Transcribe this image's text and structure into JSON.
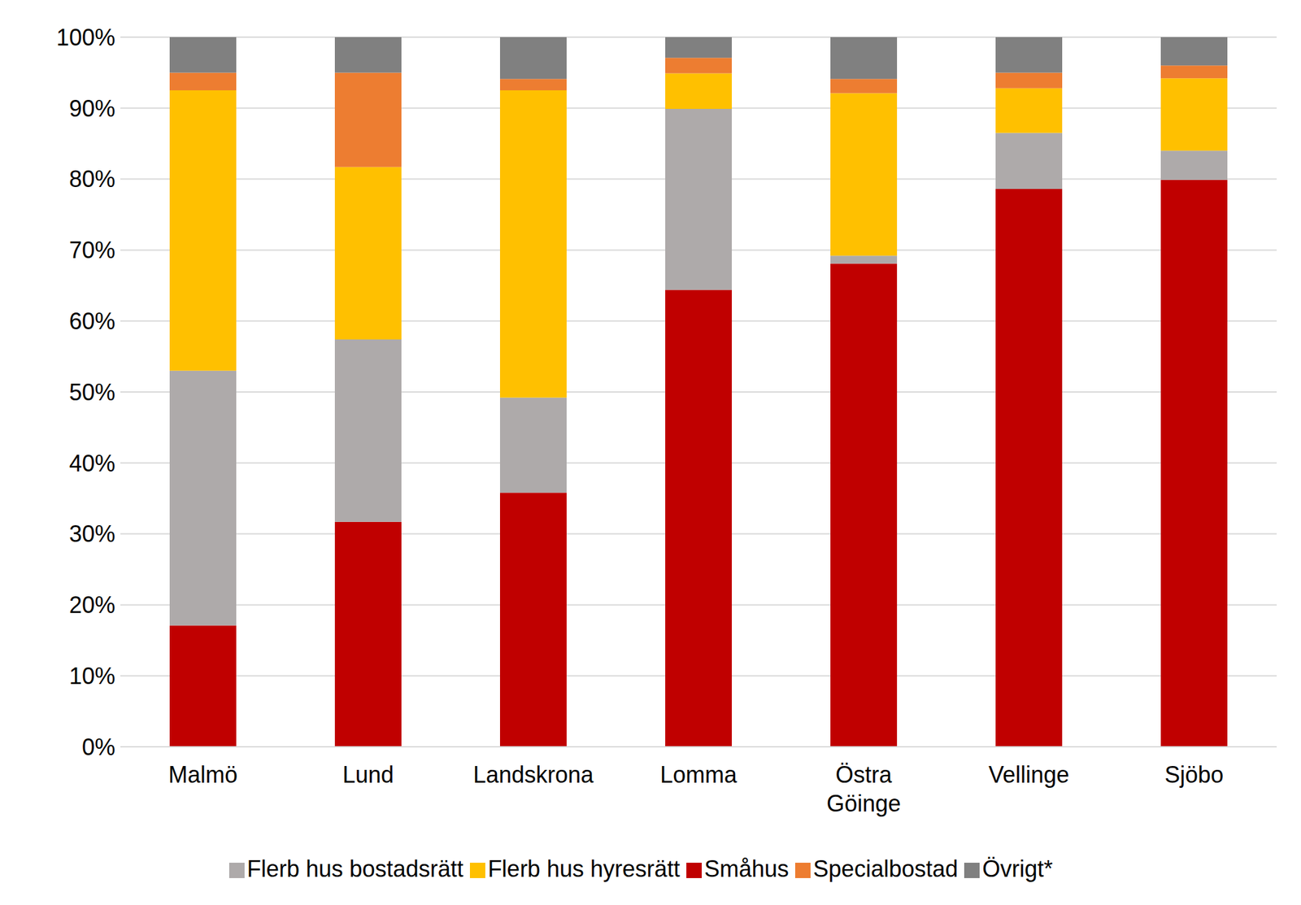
{
  "chart_data": {
    "type": "bar",
    "stacked": true,
    "grid": true,
    "legend": "bottom",
    "categories": [
      "Malmö",
      "Lund",
      "Landskrona",
      "Lomma",
      "Östra Göinge",
      "Vellinge",
      "Sjöbo"
    ],
    "series": [
      {
        "name": "Småhus",
        "color": "#c00000",
        "values": [
          17.1,
          31.7,
          35.8,
          64.4,
          68.1,
          78.6,
          79.9
        ]
      },
      {
        "name": "Flerb hus bostadsrätt",
        "color": "#aeaaaa",
        "values": [
          35.9,
          25.7,
          13.4,
          25.5,
          1.1,
          7.9,
          4.1
        ]
      },
      {
        "name": "Flerb hus hyresrätt",
        "color": "#ffc000",
        "values": [
          39.5,
          24.3,
          43.3,
          5.0,
          22.9,
          6.3,
          10.2
        ]
      },
      {
        "name": "Specialbostad",
        "color": "#ed7d31",
        "values": [
          2.5,
          13.3,
          1.6,
          2.2,
          2.0,
          2.2,
          1.8
        ]
      },
      {
        "name": "Övrigt*",
        "color": "#808080",
        "values": [
          5.0,
          5.0,
          5.9,
          2.9,
          5.9,
          5.0,
          4.0
        ]
      }
    ],
    "ylim": [
      0,
      100
    ],
    "yticks": [
      {
        "value": 0,
        "label": "0%"
      },
      {
        "value": 10,
        "label": "10%"
      },
      {
        "value": 20,
        "label": "20%"
      },
      {
        "value": 30,
        "label": "30%"
      },
      {
        "value": 40,
        "label": "40%"
      },
      {
        "value": 50,
        "label": "50%"
      },
      {
        "value": 60,
        "label": "60%"
      },
      {
        "value": 70,
        "label": "70%"
      },
      {
        "value": 80,
        "label": "80%"
      },
      {
        "value": 90,
        "label": "90%"
      },
      {
        "value": 100,
        "label": "100%"
      }
    ]
  }
}
